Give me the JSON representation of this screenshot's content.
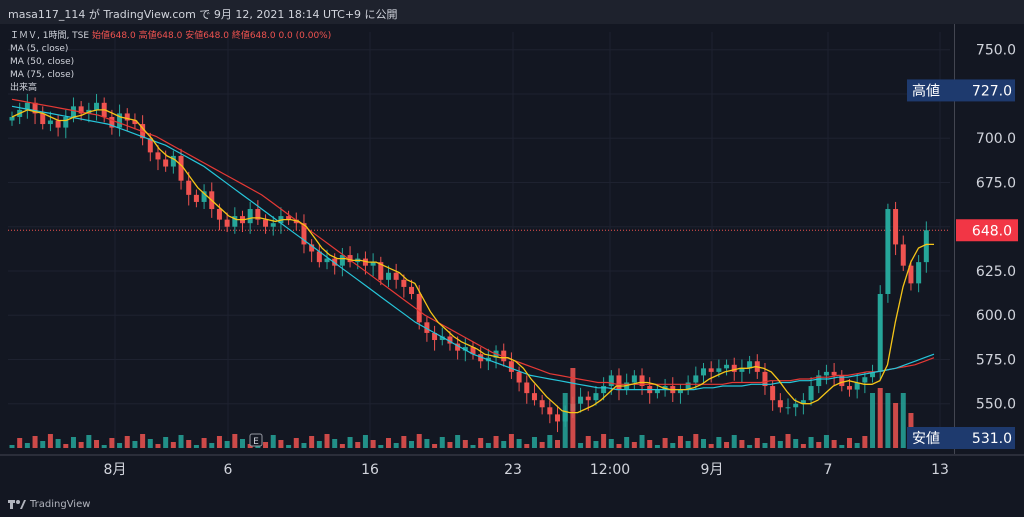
{
  "header": {
    "caption": "masa117_114 が TradingView.com で 9月 12, 2021 18:14 UTC+9 に公開"
  },
  "legend": {
    "symbol": "ＩＭＶ, 1時間, TSE",
    "ohlc": "始値648.0  高値648.0  安値648.0  終値648.0  0.0 (0.00%)",
    "ma5": "MA (5, close)",
    "ma50": "MA (50, close)",
    "ma75": "MA (75, close)",
    "volume": "出来高"
  },
  "price_axis": {
    "ticks": [
      "750.0",
      "700.0",
      "675.0",
      "650.0",
      "625.0",
      "600.0",
      "575.0",
      "550.0"
    ],
    "high_label": "高値",
    "high_value": "727.0",
    "last_value": "648.0",
    "low_label": "安値",
    "low_value": "531.0"
  },
  "time_axis": {
    "ticks": [
      "8月",
      "6",
      "16",
      "23",
      "12:00",
      "9月",
      "7",
      "13"
    ]
  },
  "earnings_marker": "E",
  "brand": "TradingView",
  "colors": {
    "up": "#26a69a",
    "down": "#ef5350",
    "ma5": "#f5c518",
    "ma50": "#26c6da",
    "ma75": "#e53935",
    "background": "#131722"
  },
  "chart_data": {
    "type": "candlestick",
    "symbol": "ＩＭＶ",
    "interval": "1時間",
    "exchange": "TSE",
    "ylim": [
      525,
      760
    ],
    "high": 727.0,
    "low": 531.0,
    "last": 648.0,
    "x_tick_labels": [
      "8月",
      "6",
      "16",
      "23",
      "12:00",
      "9月",
      "7",
      "13"
    ],
    "close": [
      712,
      716,
      720,
      714,
      708,
      710,
      706,
      712,
      718,
      714,
      716,
      720,
      712,
      706,
      714,
      710,
      708,
      700,
      692,
      688,
      684,
      690,
      676,
      668,
      664,
      670,
      660,
      654,
      650,
      656,
      652,
      660,
      654,
      650,
      652,
      656,
      654,
      652,
      640,
      636,
      630,
      632,
      628,
      634,
      630,
      632,
      628,
      630,
      620,
      624,
      620,
      616,
      612,
      596,
      590,
      586,
      588,
      584,
      580,
      582,
      578,
      574,
      576,
      580,
      574,
      568,
      562,
      556,
      552,
      548,
      544,
      540,
      546,
      550,
      554,
      552,
      556,
      560,
      566,
      558,
      562,
      566,
      560,
      556,
      558,
      560,
      556,
      558,
      562,
      566,
      570,
      568,
      570,
      572,
      568,
      570,
      574,
      568,
      560,
      552,
      548,
      548,
      550,
      552,
      560,
      566,
      568,
      566,
      560,
      558,
      562,
      565,
      568,
      612,
      660,
      640,
      628,
      618,
      630,
      648
    ],
    "ma5": [
      712,
      714,
      716,
      715,
      714,
      712,
      710,
      710,
      712,
      713,
      715,
      716,
      716,
      714,
      712,
      711,
      710,
      705,
      700,
      694,
      690,
      688,
      684,
      678,
      672,
      668,
      664,
      660,
      656,
      654,
      654,
      655,
      655,
      654,
      653,
      654,
      654,
      653,
      650,
      644,
      638,
      634,
      632,
      632,
      631,
      631,
      630,
      630,
      628,
      626,
      624,
      620,
      618,
      610,
      602,
      596,
      592,
      588,
      585,
      583,
      581,
      578,
      577,
      576,
      576,
      574,
      570,
      564,
      559,
      554,
      550,
      546,
      545,
      545,
      547,
      549,
      552,
      556,
      560,
      560,
      561,
      562,
      562,
      561,
      559,
      558,
      558,
      558,
      559,
      561,
      564,
      566,
      568,
      569,
      570,
      570,
      571,
      570,
      568,
      563,
      557,
      552,
      550,
      550,
      552,
      556,
      560,
      562,
      563,
      562,
      561,
      561,
      563,
      572,
      596,
      616,
      630,
      638,
      640,
      640
    ],
    "ma50": [
      718,
      717,
      716,
      715,
      714,
      713,
      712,
      711,
      710,
      709,
      708,
      706,
      704,
      702,
      700,
      698,
      696,
      693,
      690,
      687,
      684,
      680,
      676,
      672,
      668,
      664,
      660,
      656,
      652,
      648,
      644,
      640,
      636,
      632,
      628,
      624,
      620,
      616,
      612,
      608,
      604,
      600,
      596,
      593,
      590,
      587,
      584,
      581,
      578,
      576,
      574,
      572,
      570,
      568,
      566,
      565,
      564,
      563,
      562,
      561,
      560,
      559,
      559,
      558,
      558,
      558,
      558,
      558,
      558,
      558,
      558,
      558,
      559,
      559,
      560,
      560,
      560,
      561,
      561,
      561,
      562,
      562,
      563,
      563,
      564,
      564,
      565,
      565,
      566,
      567,
      568,
      569,
      570,
      572,
      574,
      576,
      578
    ],
    "ma75": [
      722,
      721,
      720,
      719,
      718,
      717,
      716,
      715,
      714,
      713,
      711,
      709,
      707,
      705,
      703,
      701,
      698,
      695,
      692,
      689,
      686,
      683,
      680,
      677,
      674,
      671,
      668,
      664,
      660,
      656,
      652,
      648,
      644,
      640,
      636,
      632,
      628,
      624,
      620,
      616,
      612,
      608,
      604,
      600,
      597,
      594,
      591,
      588,
      585,
      582,
      579,
      577,
      575,
      573,
      571,
      569,
      567,
      566,
      565,
      564,
      563,
      562,
      562,
      561,
      561,
      561,
      561,
      561,
      561,
      561,
      561,
      561,
      561,
      561,
      561,
      562,
      562,
      562,
      562,
      563,
      563,
      563,
      564,
      564,
      565,
      565,
      566,
      566,
      567,
      568,
      568,
      569,
      570,
      571,
      572,
      574,
      576
    ],
    "series": [
      {
        "name": "MA (5, close)"
      },
      {
        "name": "MA (50, close)"
      },
      {
        "name": "MA (75, close)"
      },
      {
        "name": "出来高"
      }
    ]
  }
}
